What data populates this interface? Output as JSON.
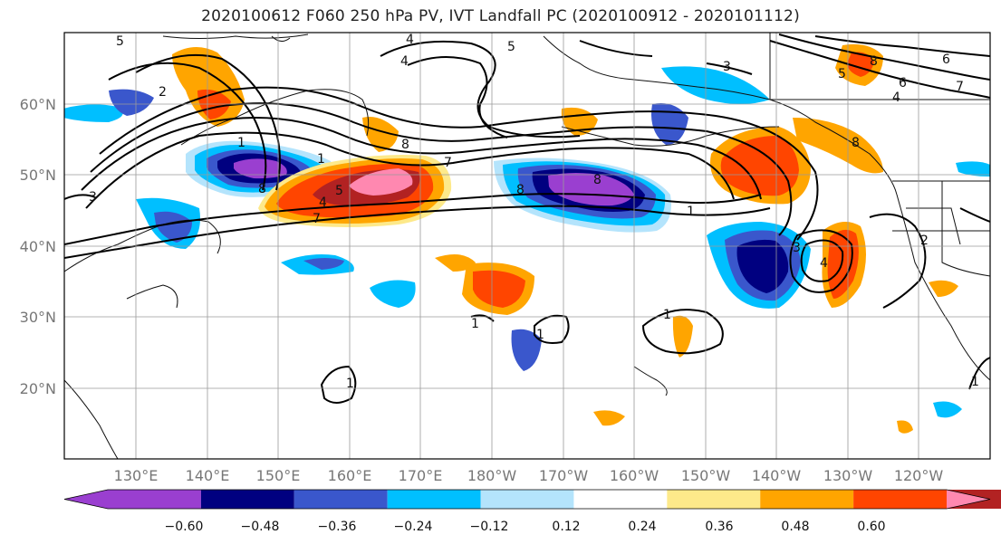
{
  "title": "2020100612 F060 250 hPa PV, IVT Landfall PC (2020100912 - 2020101112)",
  "map": {
    "lat_labels": [
      "20°N",
      "30°N",
      "40°N",
      "50°N",
      "60°N"
    ],
    "lon_labels": [
      "130°E",
      "140°E",
      "150°E",
      "160°E",
      "170°E",
      "180°W",
      "170°W",
      "160°W",
      "150°W",
      "140°W",
      "130°W",
      "120°W"
    ],
    "contour_labels": [
      "5",
      "4",
      "5",
      "4",
      "3",
      "2",
      "1",
      "1",
      "8",
      "8",
      "7",
      "7",
      "8",
      "8",
      "1",
      "3",
      "8",
      "4",
      "5",
      "6",
      "8",
      "7",
      "6",
      "5",
      "4",
      "3",
      "1",
      "1",
      "1",
      "1",
      "4",
      "2",
      "1"
    ]
  },
  "colorbar": {
    "colors": [
      "#9a3fd0",
      "#000080",
      "#3a57cc",
      "#00bfff",
      "#b4e4fc",
      "#ffffff",
      "#fde98a",
      "#ffa500",
      "#ff4500",
      "#b22222",
      "#ff88b0"
    ],
    "tick_labels": [
      "−0.60",
      "−0.48",
      "−0.36",
      "−0.24",
      "−0.12",
      "0.12",
      "0.24",
      "0.36",
      "0.48",
      "0.60"
    ]
  },
  "chart_data": {
    "type": "heatmap",
    "title": "2020100612 F060 250 hPa PV, IVT Landfall PC (2020100912 - 2020101112)",
    "xlabel": "",
    "ylabel": "",
    "lon_ticks": [
      "130°E",
      "140°E",
      "150°E",
      "160°E",
      "170°E",
      "180°W",
      "170°W",
      "160°W",
      "150°W",
      "140°W",
      "130°W",
      "120°W"
    ],
    "lat_ticks": [
      "20°N",
      "30°N",
      "40°N",
      "50°N",
      "60°N"
    ],
    "levels": [
      -0.6,
      -0.48,
      -0.36,
      -0.24,
      -0.12,
      0.12,
      0.24,
      0.36,
      0.48,
      0.6
    ],
    "grid": true
  }
}
